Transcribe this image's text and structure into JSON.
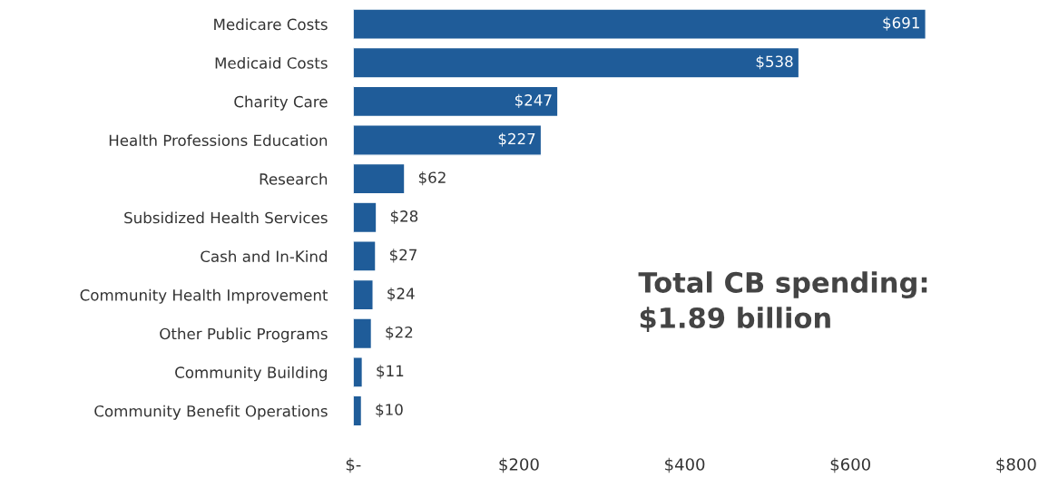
{
  "chart_data": {
    "type": "bar",
    "orientation": "horizontal",
    "categories": [
      "Medicare Costs",
      "Medicaid Costs",
      "Charity Care",
      "Health Professions Education",
      "Research",
      "Subsidized Health Services",
      "Cash and In-Kind",
      "Community Health Improvement",
      "Other Public Programs",
      "Community Building",
      "Community Benefit Operations"
    ],
    "values": [
      691,
      538,
      247,
      227,
      62,
      28,
      27,
      24,
      22,
      11,
      10
    ],
    "value_labels": [
      "$691",
      "$538",
      "$247",
      "$227",
      "$62",
      "$28",
      "$27",
      "$24",
      "$22",
      "$11",
      "$10"
    ],
    "color": "#1f5c99",
    "xlim": [
      0,
      800
    ],
    "xticks": [
      {
        "value": 0,
        "label": "$-"
      },
      {
        "value": 200,
        "label": "$200"
      },
      {
        "value": 400,
        "label": "$400"
      },
      {
        "value": 600,
        "label": "$600"
      },
      {
        "value": 800,
        "label": "$800"
      }
    ],
    "annotations": [
      "Total CB spending:\n$1.89 billion"
    ],
    "grid": false,
    "legend": false
  }
}
